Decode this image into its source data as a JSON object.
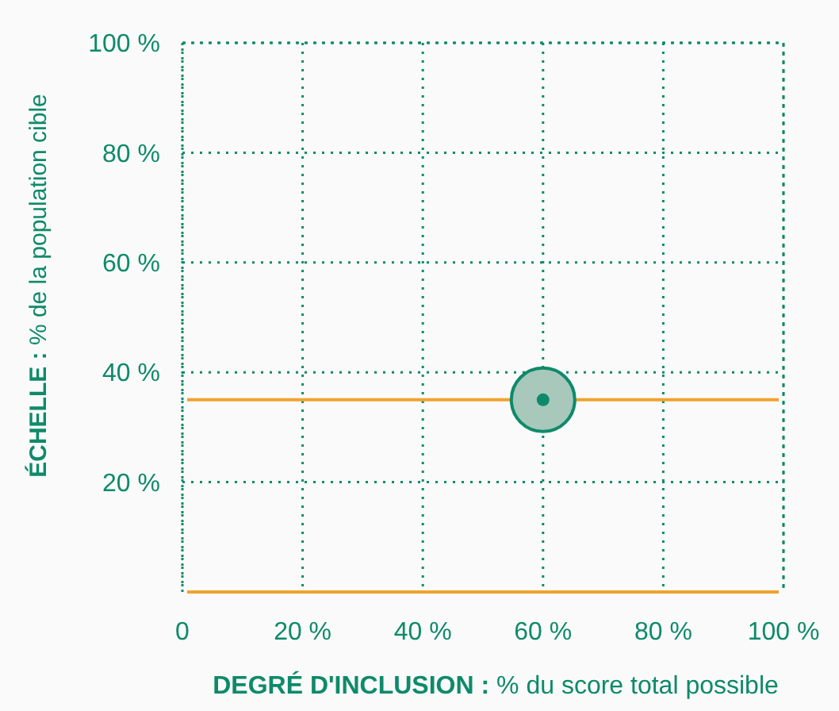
{
  "chart_data": {
    "type": "scatter",
    "xlabel": "DEGRÉ D'INCLUSION : % du score total possible",
    "ylabel": "ÉCHELLE : % de la population cible",
    "x": [
      60
    ],
    "series": [
      {
        "color": "#0e8a6a",
        "values": [
          35
        ]
      }
    ],
    "xlim": [
      0,
      100
    ],
    "ylim": [
      0,
      100
    ],
    "xticks": [
      0,
      {
        "value": 20,
        "label": "20 %"
      },
      {
        "value": 40,
        "label": "40 %"
      },
      {
        "value": 60,
        "label": "60 %"
      },
      {
        "value": 80,
        "label": "80 %"
      },
      {
        "value": 100,
        "label": "100 %"
      }
    ],
    "yticks": [
      {
        "value": 20,
        "label": "20 %"
      },
      {
        "value": 40,
        "label": "40 %"
      },
      {
        "value": 60,
        "label": "60 %"
      },
      {
        "value": 80,
        "label": "80 %"
      },
      {
        "value": 100,
        "label": "100 %"
      }
    ],
    "ref_lines": [
      {
        "axis": "y",
        "value": 35,
        "color": "#f2a22c"
      }
    ],
    "grid": true,
    "marker": "circle"
  }
}
